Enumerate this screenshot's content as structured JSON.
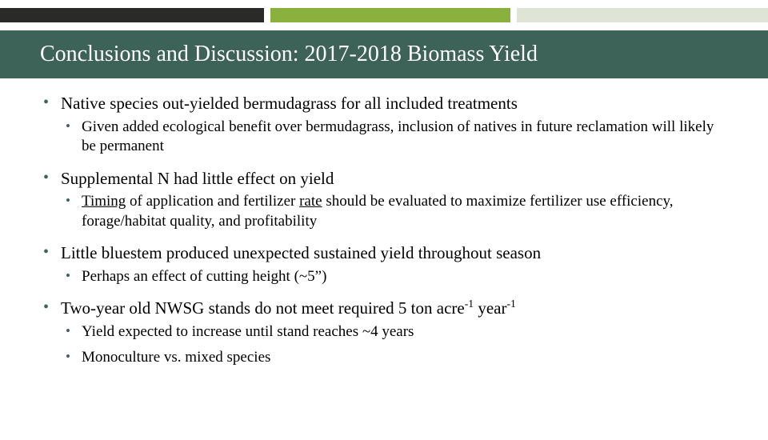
{
  "colors": {
    "bar_dark": "#2a2a29",
    "bar_green": "#8ab03e",
    "bar_light": "#dfe5d6",
    "title_band_bg": "#3d6257",
    "title_text": "#ffffff",
    "bullet_color": "#3d6257",
    "body_text": "#000000",
    "background": "#ffffff"
  },
  "typography": {
    "font_family": "Times New Roman",
    "title_fontsize_pt": 21,
    "main_bullet_fontsize_pt": 16,
    "sub_bullet_fontsize_pt": 14
  },
  "title": "Conclusions and Discussion: 2017-2018 Biomass Yield",
  "bullets": {
    "b1": "Native species out-yielded bermudagrass for all included treatments",
    "b1_1": "Given added ecological benefit over bermudagrass, inclusion of natives in future reclamation will likely be permanent",
    "b2": "Supplemental N had little effect on yield",
    "b2_1_pre": "",
    "b2_1_u1": "Timing",
    "b2_1_mid1": " of application and fertilizer ",
    "b2_1_u2": "rate",
    "b2_1_mid2": " should be evaluated to maximize fertilizer use efficiency, forage/habitat quality, and profitability",
    "b3": "Little bluestem produced unexpected sustained yield throughout season",
    "b3_1": "Perhaps an effect of cutting height (~5”)",
    "b4_pre": "Two-year old NWSG stands do not meet required 5 ton acre",
    "b4_sup1": "-1",
    "b4_mid": " year",
    "b4_sup2": "-1",
    "b4_1": "Yield expected to increase until stand reaches ~4 years",
    "b4_2": "Monoculture vs. mixed species"
  }
}
